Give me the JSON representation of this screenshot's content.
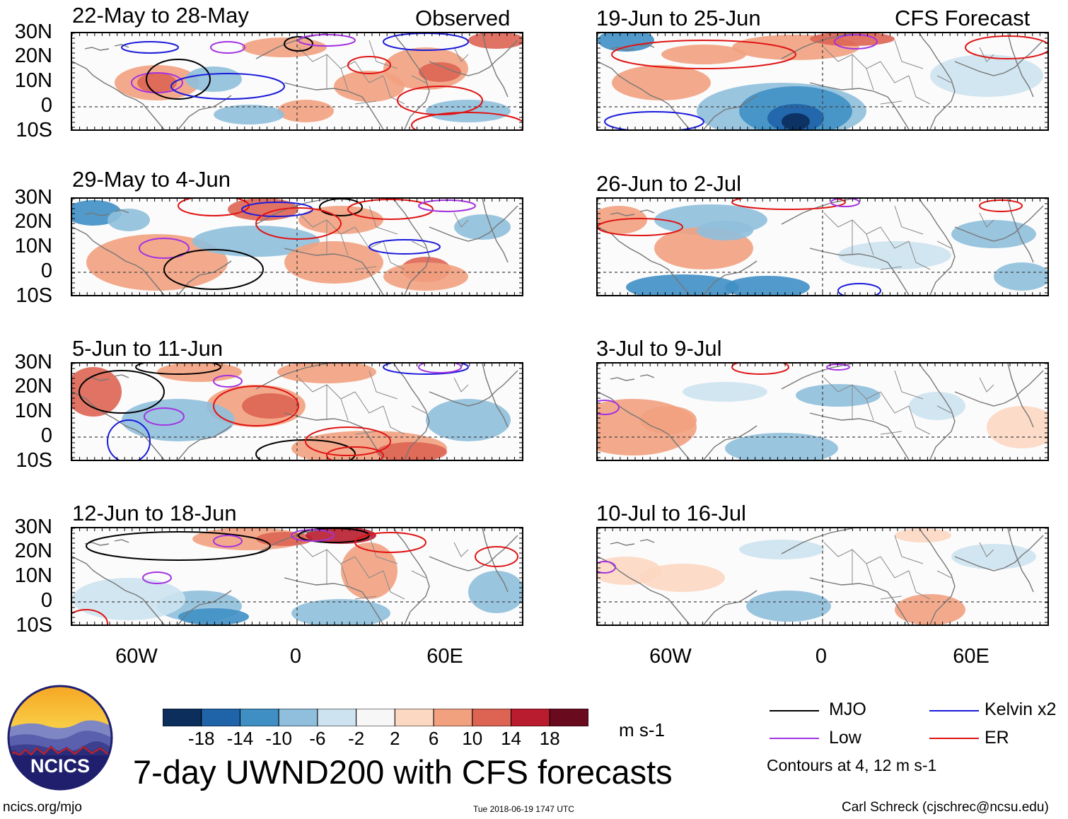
{
  "header": {
    "observed_label": "Observed",
    "forecast_label": "CFS Forecast"
  },
  "panels": {
    "left": [
      {
        "date_range": "22-May to 28-May"
      },
      {
        "date_range": "29-May to 4-Jun"
      },
      {
        "date_range": "5-Jun to 11-Jun"
      },
      {
        "date_range": "12-Jun to 18-Jun"
      }
    ],
    "right": [
      {
        "date_range": "19-Jun to 25-Jun"
      },
      {
        "date_range": "26-Jun to 2-Jul"
      },
      {
        "date_range": "3-Jul to 9-Jul"
      },
      {
        "date_range": "10-Jul to 16-Jul"
      }
    ]
  },
  "axes": {
    "lat_ticks": [
      "30N",
      "20N",
      "10N",
      "0",
      "10S"
    ],
    "lon_ticks": [
      "60W",
      "0",
      "60E"
    ]
  },
  "colorbar": {
    "colors": [
      "#0b2e5c",
      "#1f63a8",
      "#3f8fc5",
      "#8fbfdc",
      "#cde3f0",
      "#f7f7f7",
      "#fcd7c2",
      "#f2a17f",
      "#dd6453",
      "#b81c2e",
      "#6a0a1e"
    ],
    "tick_labels": [
      "-18",
      "-14",
      "-10",
      "-6",
      "-2",
      "2",
      "6",
      "10",
      "14",
      "18"
    ],
    "units": "m s-1"
  },
  "legend": {
    "items": [
      {
        "label": "MJO",
        "color": "#000000"
      },
      {
        "label": "Kelvin x2",
        "color": "#1a1adc"
      },
      {
        "label": "Low",
        "color": "#a332e0"
      },
      {
        "label": "ER",
        "color": "#e01414"
      }
    ],
    "note": "Contours at 4, 12 m s-1"
  },
  "logo": {
    "text": "NCICS"
  },
  "title": "7-day UWND200 with CFS forecasts",
  "footer": {
    "url": "ncics.org/mjo",
    "timestamp": "Tue 2018-06-19 1747 UTC",
    "author": "Carl Schreck (cjschrec@ncsu.edu)"
  }
}
